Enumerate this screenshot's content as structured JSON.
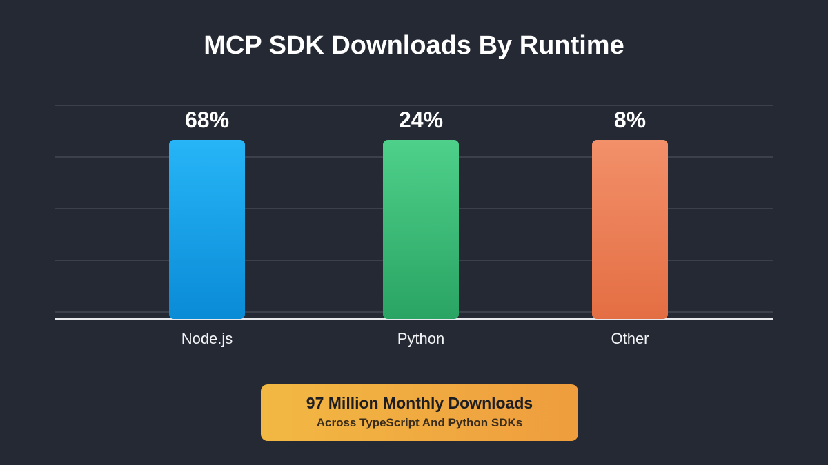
{
  "chart_data": {
    "type": "bar",
    "title": "MCP SDK Downloads By Runtime",
    "categories": [
      "Node.js",
      "Python",
      "Other"
    ],
    "values": [
      68,
      24,
      8
    ],
    "value_labels": [
      "68%",
      "24%",
      "8%"
    ],
    "unit": "%",
    "xlabel": "",
    "ylabel": "",
    "ylim": [
      0,
      100
    ],
    "grid": true,
    "legend": "none",
    "colors": [
      [
        "#27b5f7",
        "#0a8bd6"
      ],
      [
        "#4ed08a",
        "#2aa463"
      ],
      [
        "#f2906a",
        "#e46e43"
      ]
    ]
  },
  "callout": {
    "main": "97 Million Monthly Downloads",
    "sub": "Across TypeScript And Python SDKs"
  },
  "theme": {
    "background": "#252934",
    "gridline": "#4a4e59",
    "baseline": "#e6e8ec",
    "label": "#ffffff"
  }
}
